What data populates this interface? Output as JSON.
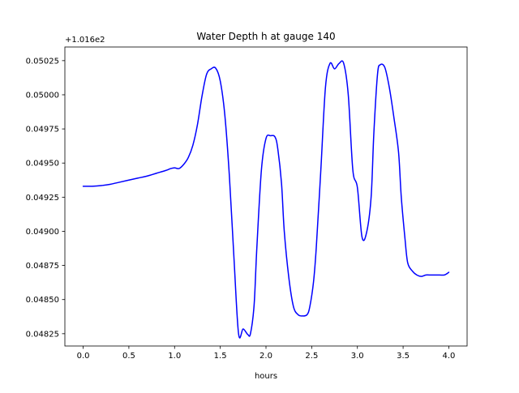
{
  "chart_data": {
    "type": "line",
    "title": "Water Depth h at gauge 140",
    "xlabel": "hours",
    "ylabel": "",
    "offset_text": "+1.016e2",
    "y_offset": 101.6,
    "xlim": [
      -0.2,
      4.2
    ],
    "ylim": [
      0.04816,
      0.05035
    ],
    "x_ticks": [
      0.0,
      0.5,
      1.0,
      1.5,
      2.0,
      2.5,
      3.0,
      3.5,
      4.0
    ],
    "x_tick_labels": [
      "0.0",
      "0.5",
      "1.0",
      "1.5",
      "2.0",
      "2.5",
      "3.0",
      "3.5",
      "4.0"
    ],
    "y_ticks": [
      0.04825,
      0.0485,
      0.04875,
      0.049,
      0.04925,
      0.0495,
      0.04975,
      0.05,
      0.05025
    ],
    "y_tick_labels": [
      "0.04825",
      "0.04850",
      "0.04875",
      "0.04900",
      "0.04925",
      "0.04950",
      "0.04975",
      "0.05000",
      "0.05025"
    ],
    "grid": false,
    "legend": "none",
    "series": [
      {
        "color": "#0000ff",
        "x": [
          0.0,
          0.1,
          0.2,
          0.3,
          0.4,
          0.5,
          0.6,
          0.7,
          0.8,
          0.9,
          0.96,
          1.0,
          1.05,
          1.1,
          1.15,
          1.2,
          1.25,
          1.3,
          1.35,
          1.4,
          1.45,
          1.5,
          1.55,
          1.6,
          1.65,
          1.7,
          1.75,
          1.8,
          1.83,
          1.87,
          1.9,
          1.95,
          2.0,
          2.05,
          2.1,
          2.13,
          2.17,
          2.2,
          2.25,
          2.3,
          2.35,
          2.4,
          2.45,
          2.48,
          2.52,
          2.55,
          2.6,
          2.65,
          2.7,
          2.75,
          2.8,
          2.85,
          2.9,
          2.95,
          3.0,
          3.05,
          3.1,
          3.15,
          3.18,
          3.22,
          3.25,
          3.3,
          3.35,
          3.4,
          3.45,
          3.48,
          3.52,
          3.55,
          3.6,
          3.65,
          3.7,
          3.75,
          3.8,
          3.85,
          3.9,
          3.95,
          3.98,
          4.0
        ],
        "y": [
          0.04933,
          0.04933,
          0.049335,
          0.049345,
          0.04936,
          0.049375,
          0.04939,
          0.049405,
          0.049425,
          0.049445,
          0.04946,
          0.049465,
          0.04946,
          0.04949,
          0.04954,
          0.04963,
          0.04978,
          0.04999,
          0.05015,
          0.05019,
          0.050195,
          0.0501,
          0.04985,
          0.0494,
          0.0488,
          0.04825,
          0.048285,
          0.048245,
          0.04825,
          0.04846,
          0.04888,
          0.04945,
          0.04968,
          0.0497,
          0.04969,
          0.0496,
          0.04935,
          0.049,
          0.04866,
          0.04845,
          0.04839,
          0.04838,
          0.04839,
          0.04845,
          0.04863,
          0.04888,
          0.04945,
          0.05005,
          0.05023,
          0.05019,
          0.05023,
          0.05023,
          0.05,
          0.04945,
          0.04932,
          0.04896,
          0.04899,
          0.04925,
          0.04972,
          0.05015,
          0.05022,
          0.0502,
          0.05005,
          0.04983,
          0.04958,
          0.04925,
          0.04895,
          0.04877,
          0.04871,
          0.04868,
          0.04867,
          0.04868,
          0.04868,
          0.04868,
          0.04868,
          0.04868,
          0.04869,
          0.0487
        ]
      }
    ]
  }
}
